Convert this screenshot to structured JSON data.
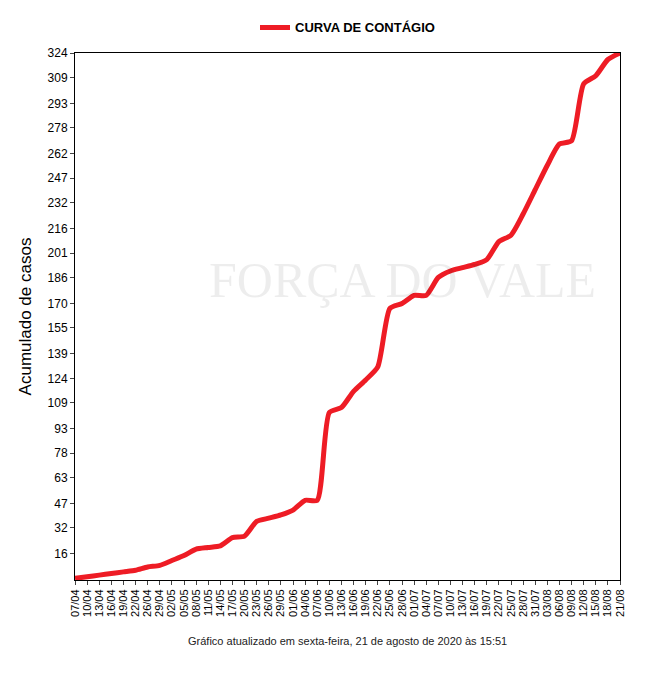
{
  "chart_data": {
    "type": "line",
    "y_label": "Acumulado de casos",
    "annotations": [
      "FORÇA DO VALE",
      "Gráfico atualizado em sexta-feira, 21 de agosto de 2020 às 15:51"
    ],
    "categories": [
      "07/04",
      "10/04",
      "13/04",
      "16/04",
      "19/04",
      "22/04",
      "26/04",
      "29/04",
      "02/05",
      "05/05",
      "08/05",
      "11/05",
      "14/05",
      "17/05",
      "20/05",
      "23/05",
      "26/05",
      "29/05",
      "01/06",
      "04/06",
      "07/06",
      "10/06",
      "13/06",
      "16/06",
      "19/06",
      "22/06",
      "25/06",
      "28/06",
      "01/07",
      "04/07",
      "07/07",
      "10/07",
      "13/07",
      "16/07",
      "19/07",
      "22/07",
      "25/07",
      "28/07",
      "31/07",
      "03/08",
      "06/08",
      "09/08",
      "12/08",
      "15/08",
      "18/08",
      "21/08"
    ],
    "series": [
      {
        "name": "CURVA DE CONTÁGIO",
        "color": "#ee1c25",
        "values": [
          1,
          2,
          3,
          4,
          5,
          6,
          8,
          9,
          12,
          15,
          19,
          20,
          21,
          26,
          27,
          36,
          38,
          40,
          43,
          49,
          49,
          103,
          106,
          116,
          123,
          131,
          167,
          170,
          175,
          175,
          186,
          190,
          192,
          194,
          197,
          208,
          212,
          225,
          240,
          255,
          268,
          270,
          305,
          310,
          320,
          324
        ]
      }
    ],
    "ylim": [
      0,
      324
    ],
    "yticks": [
      16,
      32,
      47,
      63,
      78,
      93,
      109,
      124,
      139,
      155,
      170,
      186,
      201,
      216,
      232,
      247,
      262,
      278,
      293,
      309,
      324
    ],
    "grid": false,
    "legend": "top"
  }
}
